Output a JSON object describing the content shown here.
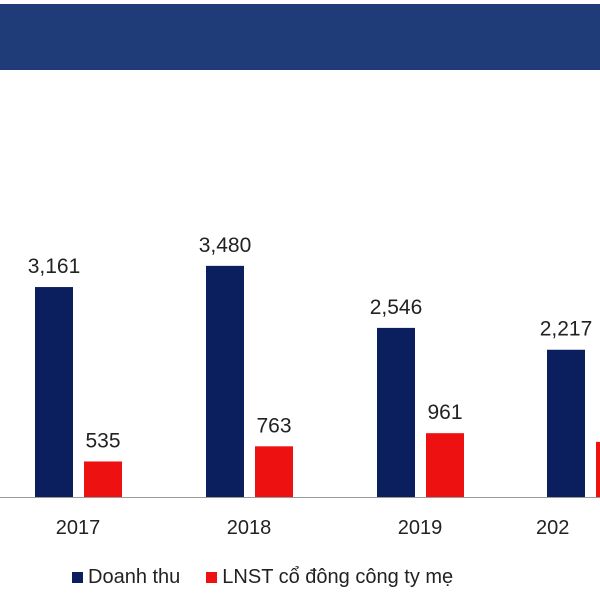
{
  "colors": {
    "header": "#1f3c78",
    "revenue": "#0b1f5e",
    "profit": "#ee1111",
    "axis": "#9a9a9a",
    "text": "#222222"
  },
  "chart_data": {
    "type": "bar",
    "title": "",
    "xlabel": "",
    "ylabel": "",
    "categories": [
      "2017",
      "2018",
      "2019",
      "202"
    ],
    "ylim": [
      0,
      3800
    ],
    "grid": false,
    "legend_position": "bottom",
    "series": [
      {
        "name": "Doanh thu",
        "values": [
          3161,
          3480,
          2546,
          2217
        ],
        "labels": [
          "3,161",
          "3,480",
          "2,546",
          "2,217"
        ]
      },
      {
        "name": "LNST cổ đông công ty mẹ",
        "values": [
          535,
          763,
          961,
          830
        ],
        "labels": [
          "535",
          "763",
          "961",
          ""
        ]
      }
    ]
  }
}
